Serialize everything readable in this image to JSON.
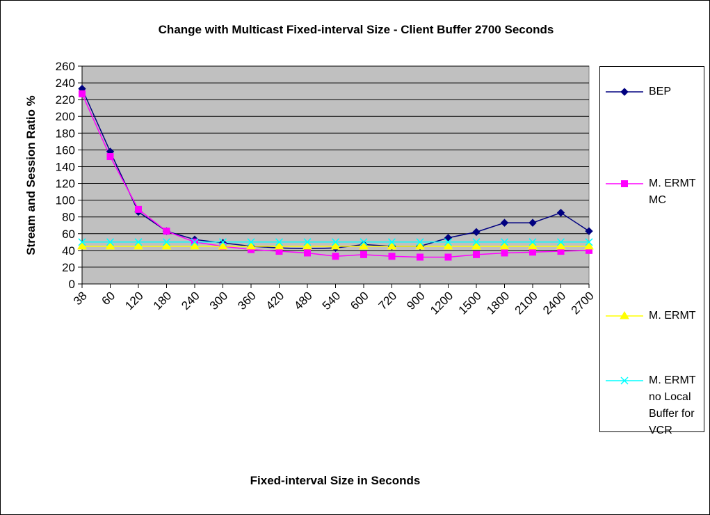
{
  "chart_data": {
    "type": "line",
    "title": "Change with Multicast Fixed-interval Size - Client Buffer 2700 Seconds",
    "xlabel": "Fixed-interval Size in Seconds",
    "ylabel": "Stream and Session Ratio %",
    "categories": [
      "38",
      "60",
      "120",
      "180",
      "240",
      "300",
      "360",
      "420",
      "480",
      "540",
      "600",
      "720",
      "900",
      "1200",
      "1500",
      "1800",
      "2100",
      "2400",
      "2700"
    ],
    "series": [
      {
        "name": "BEP",
        "color": "#000080",
        "marker": "diamond",
        "values": [
          233,
          158,
          86,
          63,
          53,
          49,
          45,
          43,
          42,
          43,
          47,
          45,
          45,
          55,
          62,
          73,
          73,
          85,
          63
        ]
      },
      {
        "name": "M. ERMT MC",
        "color": "#ff00ff",
        "marker": "square",
        "values": [
          227,
          152,
          89,
          63,
          50,
          45,
          41,
          39,
          37,
          33,
          35,
          33,
          32,
          32,
          35,
          37,
          38,
          39,
          40
        ]
      },
      {
        "name": "M. ERMT",
        "color": "#ffff00",
        "marker": "triangle",
        "values": [
          45,
          45,
          45,
          45,
          45,
          45,
          45,
          45,
          45,
          45,
          45,
          45,
          45,
          45,
          45,
          45,
          45,
          45,
          45
        ]
      },
      {
        "name": "M. ERMT no Local Buffer for VCR",
        "color": "#00ffff",
        "marker": "x",
        "values": [
          50,
          50,
          50,
          50,
          50,
          50,
          50,
          50,
          50,
          50,
          50,
          50,
          50,
          50,
          50,
          50,
          50,
          50,
          50
        ]
      }
    ],
    "ylim": [
      0,
      260
    ],
    "yticks": [
      0,
      20,
      40,
      60,
      80,
      100,
      120,
      140,
      160,
      180,
      200,
      220,
      240,
      260
    ],
    "grid": true,
    "plot_background": "#c0c0c0",
    "legend": "right"
  }
}
